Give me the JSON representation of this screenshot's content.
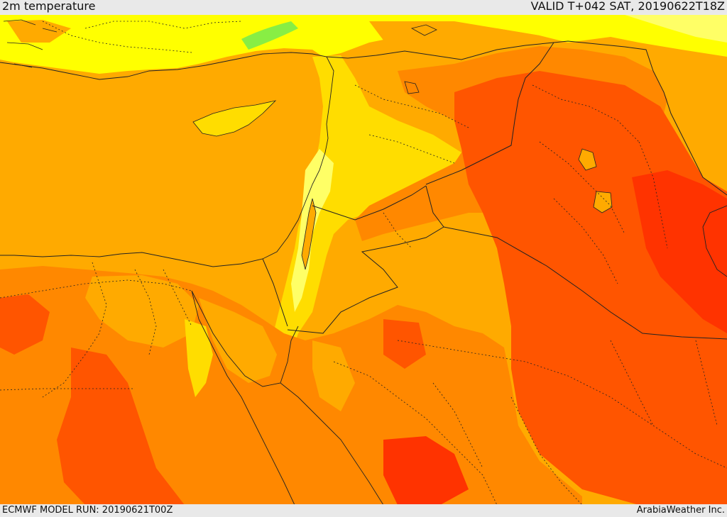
{
  "header": {
    "title": "2m temperature",
    "valid": "VALID T+042 SAT, 20190622T18Z"
  },
  "footer": {
    "model_run": "ECMWF MODEL RUN: 20190621T00Z",
    "credit": "ArabiaWeather Inc."
  },
  "palette": {
    "pale_yellow": "#ffff66",
    "yellow": "#ffff00",
    "light_orange": "#ffdd00",
    "orange": "#ffaa00",
    "dark_orange": "#ff8800",
    "red_orange": "#ff5500",
    "red": "#ff3300",
    "green": "#88ee44"
  },
  "map": {
    "variable": "2m temperature",
    "region": "Eastern Mediterranean / Levant / Arabia"
  }
}
